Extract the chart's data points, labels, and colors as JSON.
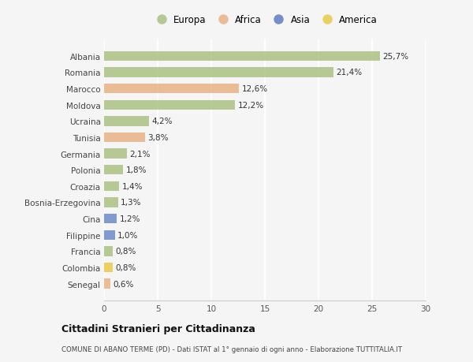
{
  "countries": [
    "Albania",
    "Romania",
    "Marocco",
    "Moldova",
    "Ucraina",
    "Tunisia",
    "Germania",
    "Polonia",
    "Croazia",
    "Bosnia-Erzegovina",
    "Cina",
    "Filippine",
    "Francia",
    "Colombia",
    "Senegal"
  ],
  "values": [
    25.7,
    21.4,
    12.6,
    12.2,
    4.2,
    3.8,
    2.1,
    1.8,
    1.4,
    1.3,
    1.2,
    1.0,
    0.8,
    0.8,
    0.6
  ],
  "labels": [
    "25,7%",
    "21,4%",
    "12,6%",
    "12,2%",
    "4,2%",
    "3,8%",
    "2,1%",
    "1,8%",
    "1,4%",
    "1,3%",
    "1,2%",
    "1,0%",
    "0,8%",
    "0,8%",
    "0,6%"
  ],
  "continents": [
    "Europa",
    "Europa",
    "Africa",
    "Europa",
    "Europa",
    "Africa",
    "Europa",
    "Europa",
    "Europa",
    "Europa",
    "Asia",
    "Asia",
    "Europa",
    "America",
    "Africa"
  ],
  "colors": {
    "Europa": "#a8c080",
    "Africa": "#e8b080",
    "Asia": "#6888c8",
    "America": "#e8c840"
  },
  "legend_colors": {
    "Europa": "#a8c080",
    "Africa": "#e8b080",
    "Asia": "#5878c0",
    "America": "#e8c840"
  },
  "title": "Cittadini Stranieri per Cittadinanza",
  "subtitle": "COMUNE DI ABANO TERME (PD) - Dati ISTAT al 1° gennaio di ogni anno - Elaborazione TUTTITALIA.IT",
  "xlim": [
    0,
    30
  ],
  "xticks": [
    0,
    5,
    10,
    15,
    20,
    25,
    30
  ],
  "background_color": "#f5f5f5",
  "grid_color": "#ffffff",
  "bar_alpha": 0.82,
  "bar_height": 0.6
}
